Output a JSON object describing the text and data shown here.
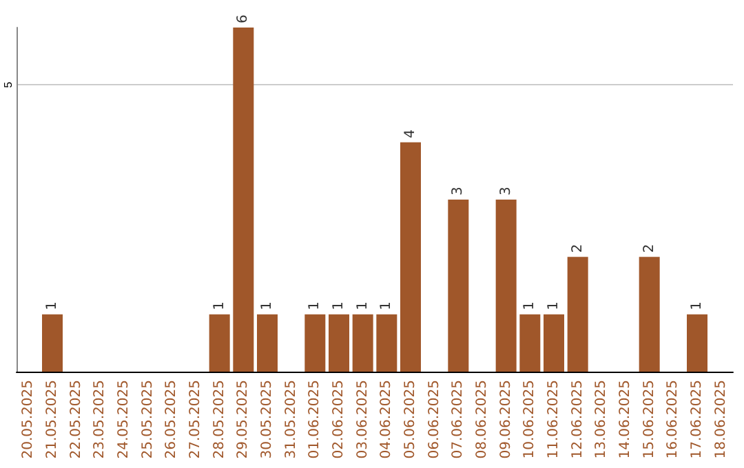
{
  "chart_data": {
    "type": "bar",
    "categories": [
      "20.05.2025",
      "21.05.2025",
      "22.05.2025",
      "23.05.2025",
      "24.05.2025",
      "25.05.2025",
      "26.05.2025",
      "27.05.2025",
      "28.05.2025",
      "29.05.2025",
      "30.05.2025",
      "31.05.2025",
      "01.06.2025",
      "02.06.2025",
      "03.06.2025",
      "04.06.2025",
      "05.06.2025",
      "06.06.2025",
      "07.06.2025",
      "08.06.2025",
      "09.06.2025",
      "10.06.2025",
      "11.06.2025",
      "12.06.2025",
      "13.06.2025",
      "14.06.2025",
      "15.06.2025",
      "16.06.2025",
      "17.06.2025",
      "18.06.2025"
    ],
    "values": [
      0,
      1,
      0,
      0,
      0,
      0,
      0,
      0,
      1,
      6,
      1,
      0,
      1,
      1,
      1,
      1,
      4,
      0,
      3,
      0,
      3,
      1,
      1,
      2,
      0,
      0,
      2,
      0,
      1,
      0
    ],
    "value_labels": [
      null,
      "1",
      null,
      null,
      null,
      null,
      null,
      null,
      "1",
      "6",
      "1",
      null,
      "1",
      "1",
      "1",
      "1",
      "4",
      null,
      "3",
      null,
      "3",
      "1",
      "1",
      "2",
      null,
      null,
      "2",
      null,
      "1",
      null
    ],
    "color": "#a0572a",
    "ylim": [
      0,
      6
    ],
    "yticks": [
      5
    ],
    "grid": "y"
  }
}
